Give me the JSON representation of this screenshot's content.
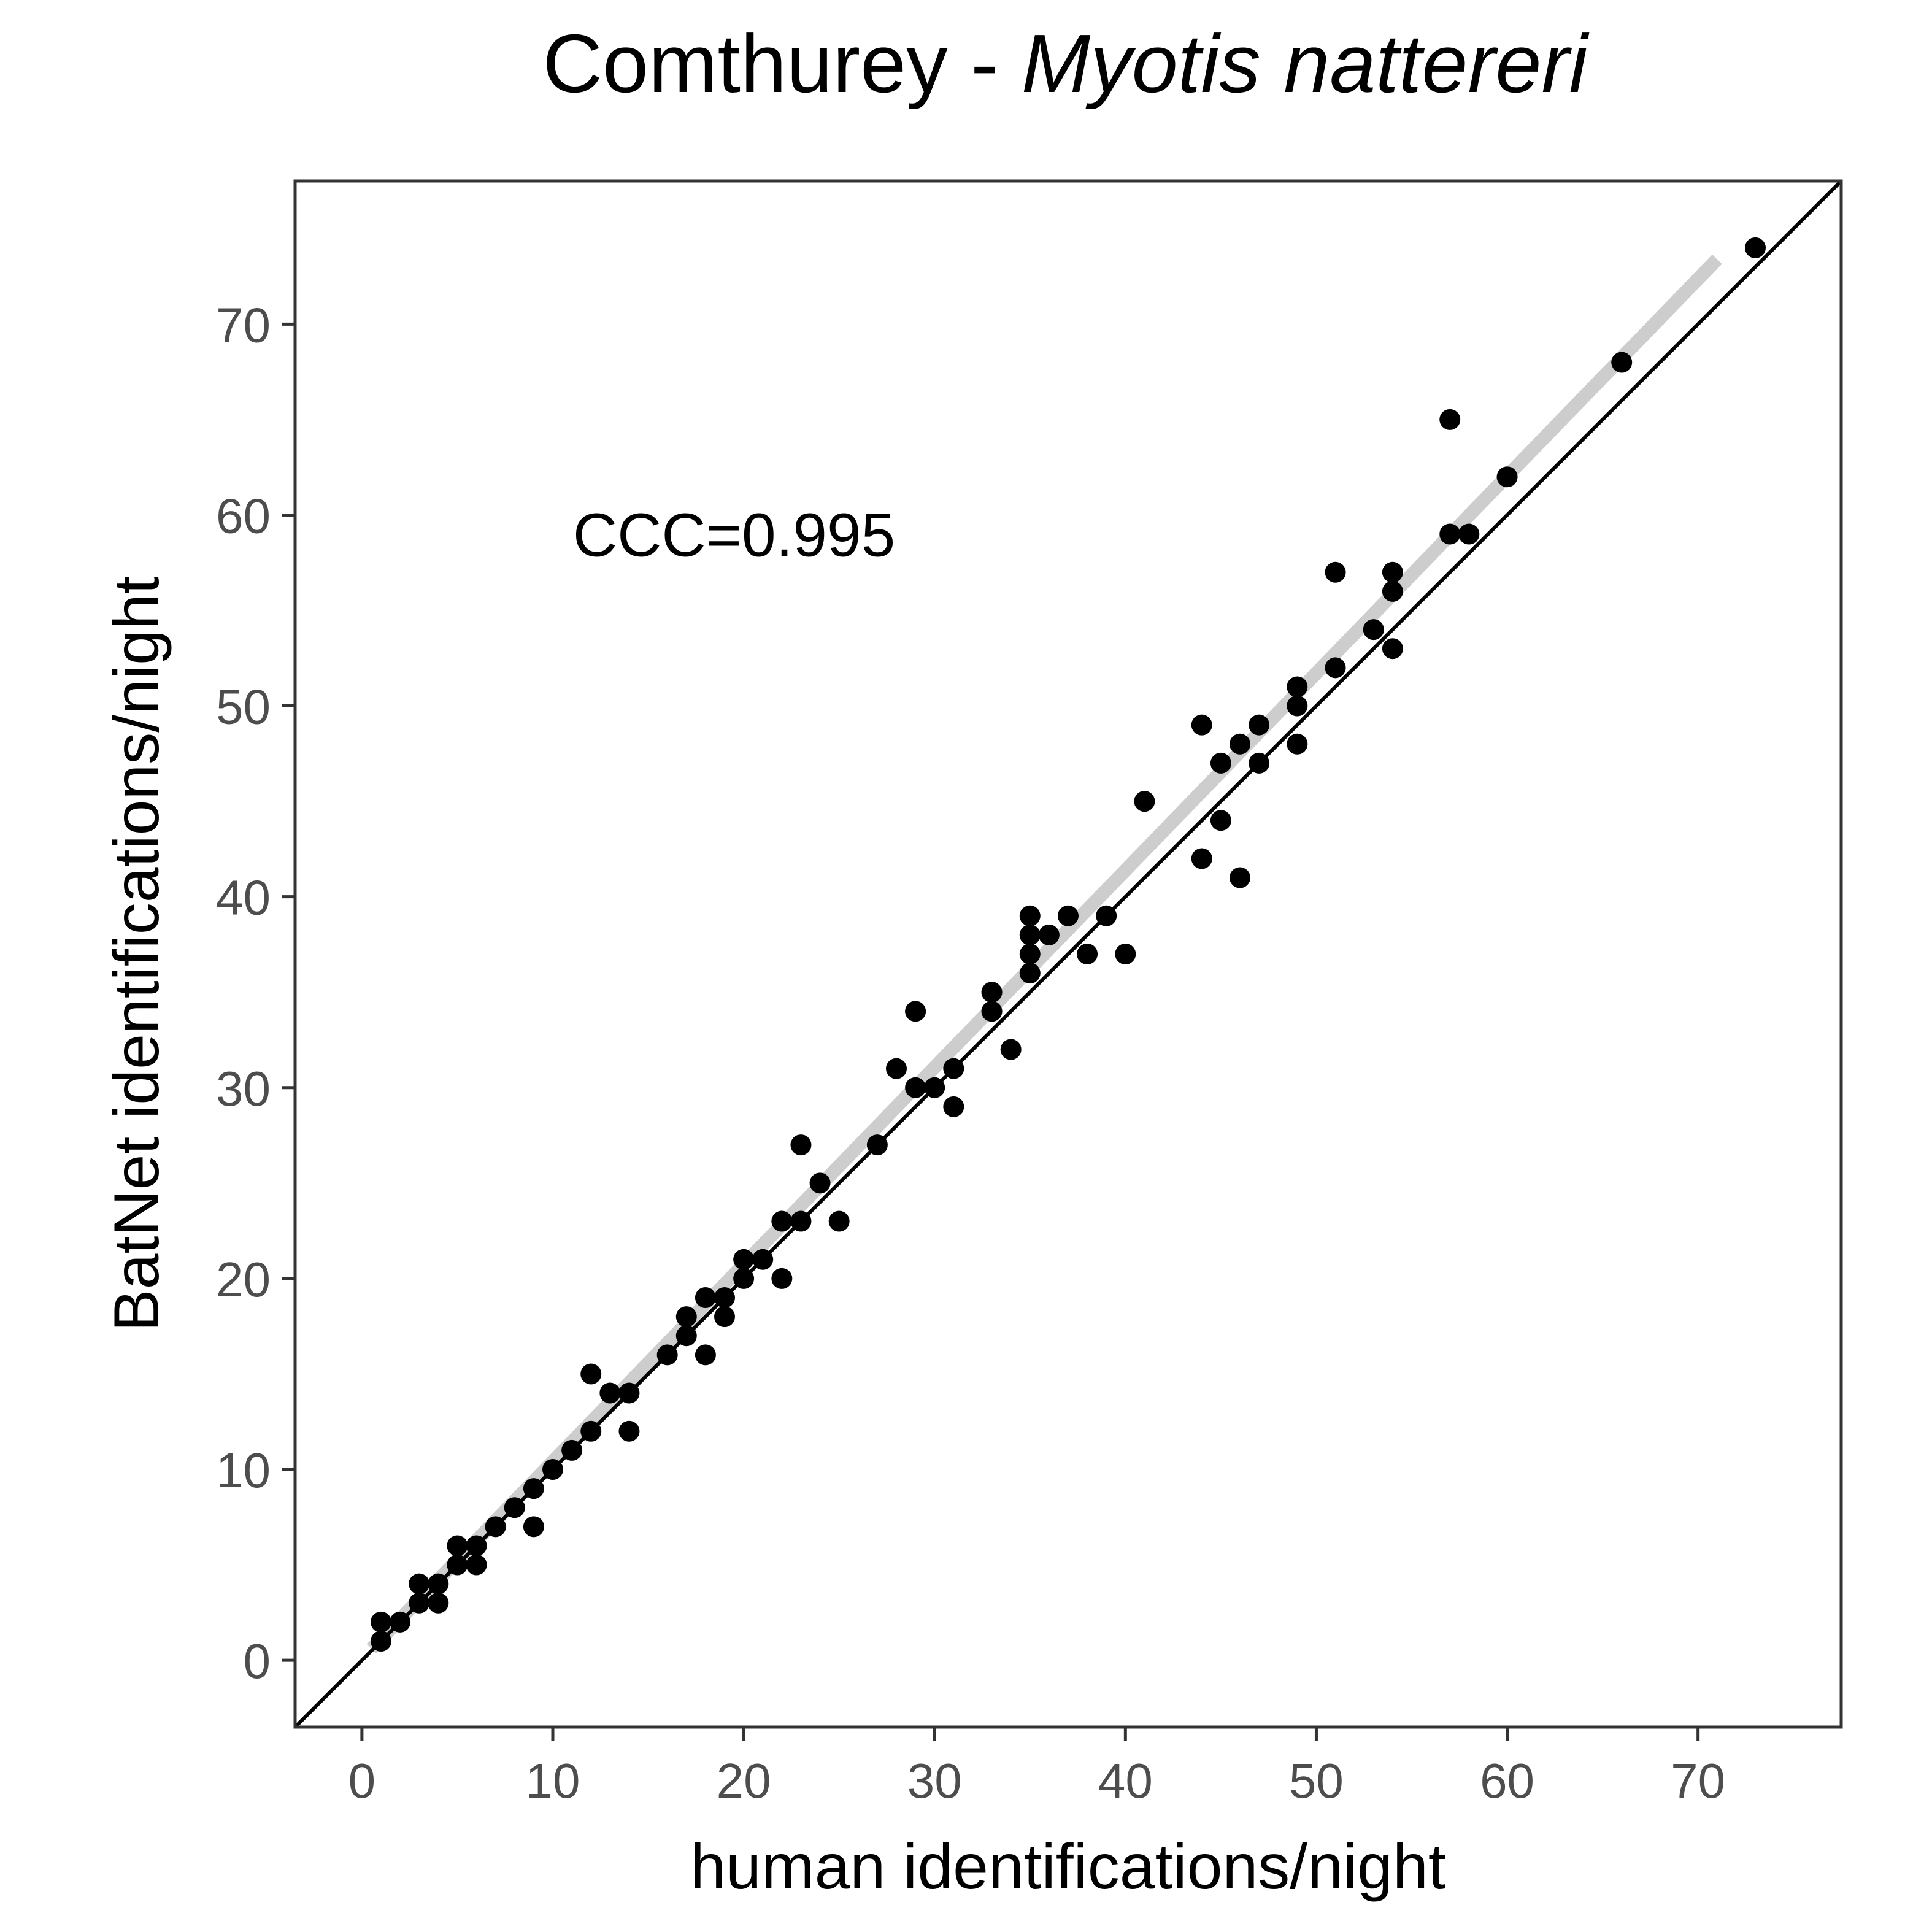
{
  "chart_data": {
    "type": "scatter",
    "title": "Comthurey - ",
    "title_italic": "Myotis nattereri",
    "xlabel": "human identifications/night",
    "ylabel": "BatNet identifications/night",
    "xlim": [
      -3.5,
      77.5
    ],
    "ylim": [
      -3.5,
      77.5
    ],
    "x_ticks": [
      0,
      10,
      20,
      30,
      40,
      50,
      60,
      70
    ],
    "y_ticks": [
      0,
      10,
      20,
      30,
      40,
      50,
      60,
      70
    ],
    "grid": false,
    "annotation": {
      "text": "CCC=0.995",
      "x": 19.5,
      "y": 59
    },
    "identity_line": {
      "slope": 1,
      "intercept": 0,
      "color": "#000000"
    },
    "fit_line": {
      "x0": 0.5,
      "y0": 0.6,
      "x1": 71.0,
      "y1": 73.4,
      "color": "#c8c8c8"
    },
    "point_color": "#000000",
    "points": [
      [
        1,
        1
      ],
      [
        1,
        2
      ],
      [
        2,
        2
      ],
      [
        3,
        3
      ],
      [
        3,
        4
      ],
      [
        4,
        3
      ],
      [
        4,
        4
      ],
      [
        5,
        5
      ],
      [
        5,
        6
      ],
      [
        6,
        5
      ],
      [
        6,
        6
      ],
      [
        7,
        7
      ],
      [
        8,
        8
      ],
      [
        9,
        7
      ],
      [
        9,
        9
      ],
      [
        10,
        10
      ],
      [
        11,
        11
      ],
      [
        12,
        12
      ],
      [
        12,
        15
      ],
      [
        13,
        14
      ],
      [
        14,
        12
      ],
      [
        14,
        14
      ],
      [
        16,
        16
      ],
      [
        17,
        17
      ],
      [
        17,
        18
      ],
      [
        18,
        16
      ],
      [
        18,
        19
      ],
      [
        19,
        18
      ],
      [
        19,
        19
      ],
      [
        20,
        20
      ],
      [
        20,
        21
      ],
      [
        21,
        21
      ],
      [
        22,
        20
      ],
      [
        22,
        23
      ],
      [
        23,
        23
      ],
      [
        23,
        27
      ],
      [
        24,
        25
      ],
      [
        25,
        23
      ],
      [
        27,
        27
      ],
      [
        28,
        31
      ],
      [
        29,
        30
      ],
      [
        29,
        34
      ],
      [
        30,
        30
      ],
      [
        31,
        29
      ],
      [
        31,
        31
      ],
      [
        33,
        34
      ],
      [
        33,
        35
      ],
      [
        34,
        32
      ],
      [
        35,
        36
      ],
      [
        35,
        37
      ],
      [
        35,
        38
      ],
      [
        35,
        39
      ],
      [
        36,
        38
      ],
      [
        37,
        39
      ],
      [
        38,
        37
      ],
      [
        39,
        39
      ],
      [
        40,
        37
      ],
      [
        41,
        45
      ],
      [
        44,
        42
      ],
      [
        44,
        49
      ],
      [
        45,
        44
      ],
      [
        45,
        47
      ],
      [
        46,
        41
      ],
      [
        46,
        48
      ],
      [
        47,
        47
      ],
      [
        47,
        49
      ],
      [
        49,
        48
      ],
      [
        49,
        50
      ],
      [
        49,
        51
      ],
      [
        51,
        52
      ],
      [
        51,
        57
      ],
      [
        53,
        54
      ],
      [
        54,
        53
      ],
      [
        54,
        56
      ],
      [
        54,
        57
      ],
      [
        57,
        59
      ],
      [
        57,
        65
      ],
      [
        58,
        59
      ],
      [
        60,
        62
      ],
      [
        66,
        68
      ],
      [
        73,
        74
      ]
    ]
  }
}
